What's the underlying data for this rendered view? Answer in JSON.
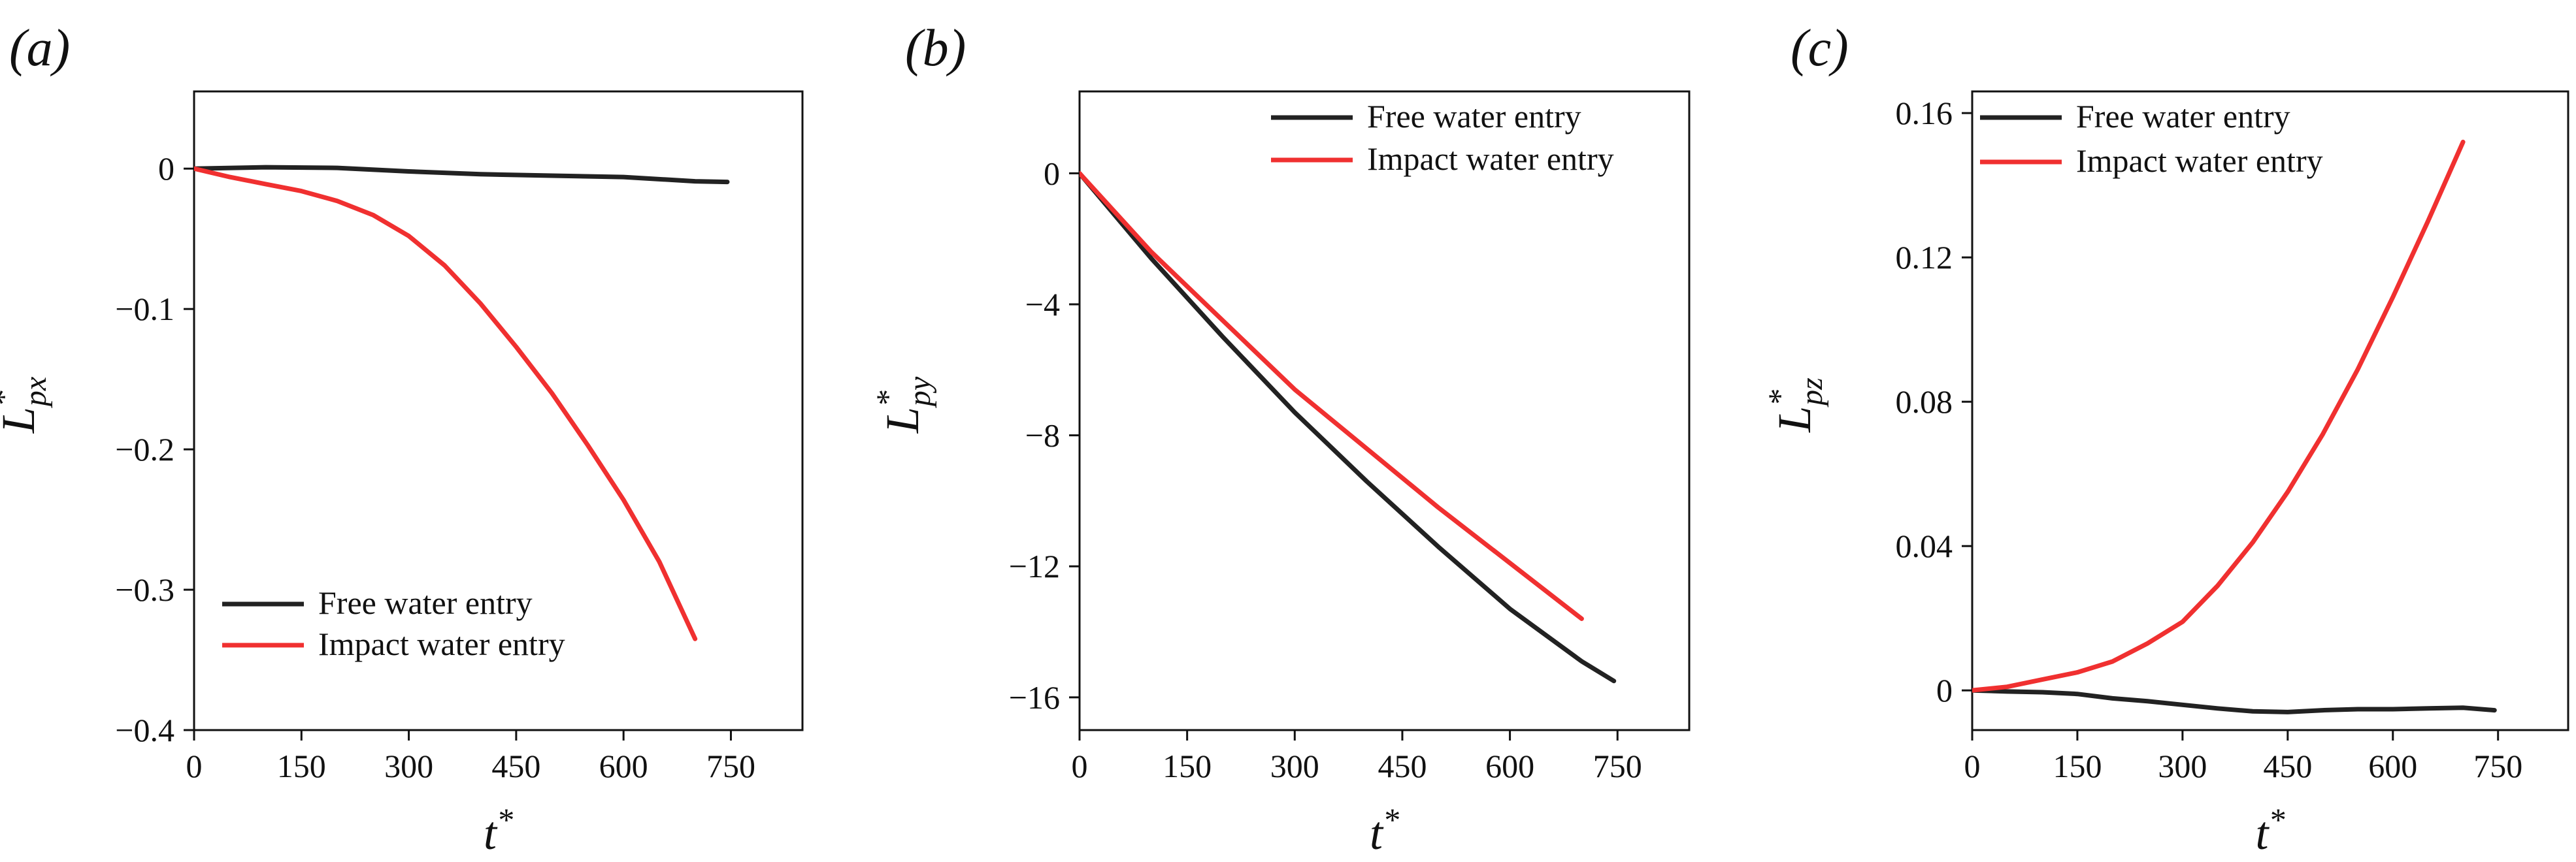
{
  "chart_data": [
    {
      "type": "line",
      "panel_label": "(a)",
      "xlabel": {
        "base": "t",
        "sup": "*"
      },
      "ylabel": {
        "base": "L",
        "sup": "*",
        "sub": "px"
      },
      "xlim": [
        0,
        850
      ],
      "ylim": [
        -0.4,
        0.055
      ],
      "x_ticks": [
        0,
        150,
        300,
        450,
        600,
        750
      ],
      "x_tick_labels": [
        "0",
        "150",
        "300",
        "450",
        "600",
        "750"
      ],
      "y_ticks": [
        0,
        -0.1,
        -0.2,
        -0.3,
        -0.4
      ],
      "y_tick_labels": [
        "0",
        "−0.1",
        "−0.2",
        "−0.3",
        "−0.4"
      ],
      "legend": "bottom-left",
      "series": [
        {
          "name": "Free water entry",
          "color": "#222222",
          "x": [
            0,
            100,
            200,
            300,
            400,
            500,
            600,
            700,
            745
          ],
          "y": [
            0,
            0.001,
            0.0005,
            -0.002,
            -0.004,
            -0.005,
            -0.006,
            -0.009,
            -0.0095
          ]
        },
        {
          "name": "Impact water entry",
          "color": "#f03030",
          "x": [
            0,
            50,
            100,
            150,
            200,
            250,
            300,
            350,
            400,
            450,
            500,
            550,
            600,
            650,
            700
          ],
          "y": [
            0,
            -0.006,
            -0.011,
            -0.016,
            -0.023,
            -0.033,
            -0.048,
            -0.069,
            -0.096,
            -0.127,
            -0.16,
            -0.197,
            -0.236,
            -0.28,
            -0.335
          ]
        }
      ]
    },
    {
      "type": "line",
      "panel_label": "(b)",
      "xlabel": {
        "base": "t",
        "sup": "*"
      },
      "ylabel": {
        "base": "L",
        "sup": "*",
        "sub": "py"
      },
      "xlim": [
        0,
        850
      ],
      "ylim": [
        -17,
        2.5
      ],
      "x_ticks": [
        0,
        150,
        300,
        450,
        600,
        750
      ],
      "x_tick_labels": [
        "0",
        "150",
        "300",
        "450",
        "600",
        "750"
      ],
      "y_ticks": [
        0,
        -4,
        -8,
        -12,
        -16
      ],
      "y_tick_labels": [
        "0",
        "−4",
        "−8",
        "−12",
        "−16"
      ],
      "legend": "top-right",
      "series": [
        {
          "name": "Free water entry",
          "color": "#222222",
          "x": [
            0,
            100,
            200,
            300,
            400,
            500,
            600,
            700,
            745
          ],
          "y": [
            0,
            -2.6,
            -5.0,
            -7.3,
            -9.4,
            -11.4,
            -13.3,
            -14.9,
            -15.5
          ]
        },
        {
          "name": "Impact water entry",
          "color": "#f03030",
          "x": [
            0,
            100,
            200,
            300,
            400,
            500,
            600,
            700
          ],
          "y": [
            0,
            -2.4,
            -4.5,
            -6.6,
            -8.4,
            -10.2,
            -11.9,
            -13.6
          ]
        }
      ]
    },
    {
      "type": "line",
      "panel_label": "(c)",
      "xlabel": {
        "base": "t",
        "sup": "*"
      },
      "ylabel": {
        "base": "L",
        "sup": "*",
        "sub": "pz"
      },
      "xlim": [
        0,
        850
      ],
      "ylim": [
        -0.011,
        0.166
      ],
      "x_ticks": [
        0,
        150,
        300,
        450,
        600,
        750
      ],
      "x_tick_labels": [
        "0",
        "150",
        "300",
        "450",
        "600",
        "750"
      ],
      "y_ticks": [
        0,
        0.04,
        0.08,
        0.12,
        0.16
      ],
      "y_tick_labels": [
        "0",
        "0.04",
        "0.08",
        "0.12",
        "0.16"
      ],
      "legend": "top-left",
      "series": [
        {
          "name": "Free water entry",
          "color": "#222222",
          "x": [
            0,
            50,
            100,
            150,
            200,
            250,
            300,
            350,
            400,
            450,
            500,
            550,
            600,
            650,
            700,
            745
          ],
          "y": [
            0,
            -0.0003,
            -0.0005,
            -0.001,
            -0.0022,
            -0.003,
            -0.004,
            -0.005,
            -0.0058,
            -0.006,
            -0.0055,
            -0.0052,
            -0.0052,
            -0.005,
            -0.0048,
            -0.0055
          ]
        },
        {
          "name": "Impact water entry",
          "color": "#f03030",
          "x": [
            0,
            50,
            100,
            150,
            200,
            250,
            300,
            350,
            400,
            450,
            500,
            550,
            600,
            650,
            700
          ],
          "y": [
            0,
            0.001,
            0.003,
            0.005,
            0.008,
            0.013,
            0.019,
            0.029,
            0.041,
            0.055,
            0.071,
            0.089,
            0.109,
            0.13,
            0.152
          ]
        }
      ]
    }
  ]
}
